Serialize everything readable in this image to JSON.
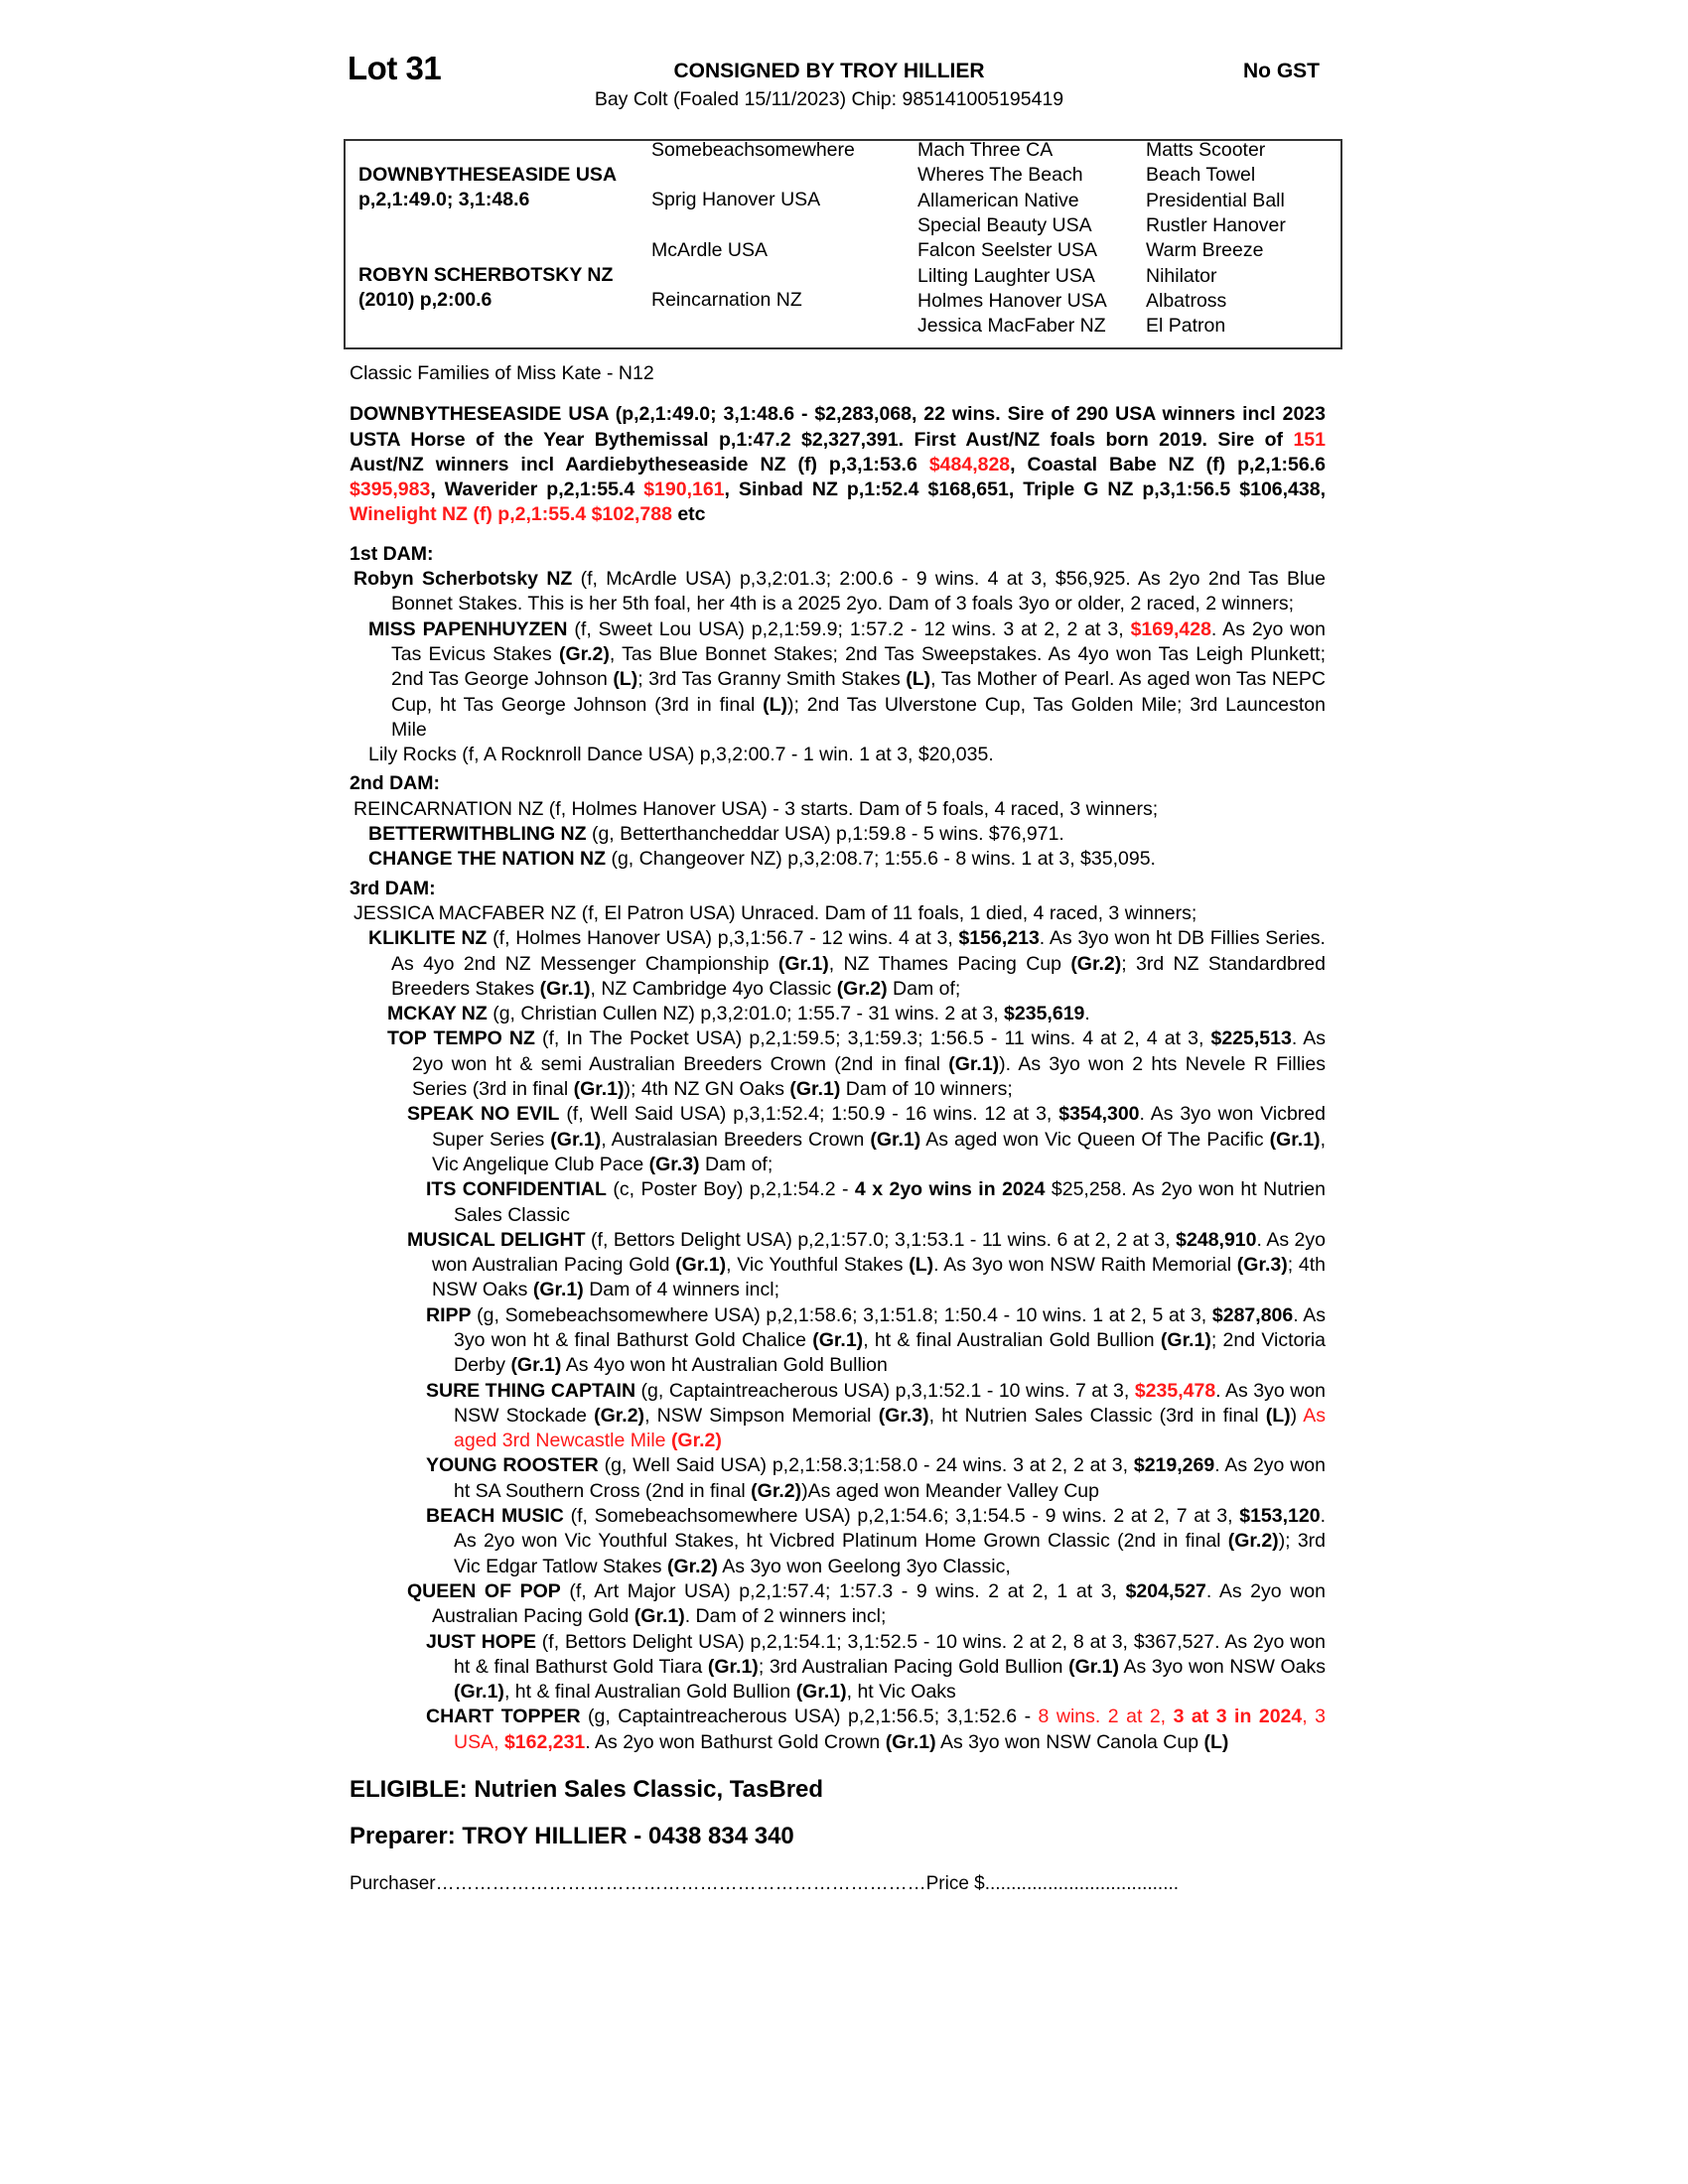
{
  "header": {
    "lot": "Lot 31",
    "consigned": "CONSIGNED BY TROY HILLIER",
    "gst": "No GST",
    "horse": "Bay Colt (Foaled 15/11/2023) Chip: 985141005195419"
  },
  "pedigree": {
    "sire_name": "DOWNBYTHESEASIDE USA",
    "sire_record": "p,2,1:49.0; 3,1:48.6",
    "dam_name": "ROBYN SCHERBOTSKY NZ",
    "dam_record": "(2010) p,2:00.6",
    "gen2": [
      "Somebeachsomewhere",
      "Sprig Hanover USA",
      "McArdle USA",
      "Reincarnation NZ"
    ],
    "gen3": [
      "Mach Three CA",
      "Wheres The Beach",
      "Allamerican Native",
      "Special Beauty USA",
      "Falcon Seelster USA",
      "Lilting Laughter USA",
      "Holmes Hanover USA",
      "Jessica MacFaber NZ"
    ],
    "gen4": [
      "Matts Scooter",
      "Beach Towel",
      "Presidential Ball",
      "Rustler Hanover",
      "Warm Breeze",
      "Nihilator",
      "Albatross",
      "El Patron"
    ]
  },
  "colors": {
    "highlight": "#ff1a1a",
    "text": "#000000"
  },
  "family": "Classic Families of Miss Kate - N12",
  "sire_para": [
    [
      "DOWNBYTHESEASIDE USA (p,2,1:49.0; 3,1:48.6 - $2,283,068, 22 wins. Sire of 290 USA winners incl 2023 USTA Horse of the Year Bythemissal p,1:47.2 $2,327,391. First Aust/NZ foals born 2019. Sire of ",
      "b"
    ],
    [
      "151",
      "br"
    ],
    [
      " Aust/NZ winners incl Aardiebytheseaside NZ (f) p,3,1:53.6 ",
      "b"
    ],
    [
      "$484,828",
      "br"
    ],
    [
      ", Coastal Babe NZ (f) p,2,1:56.6 ",
      "b"
    ],
    [
      "$395,983",
      "br"
    ],
    [
      ", Waverider p,2,1:55.4 ",
      "b"
    ],
    [
      "$190,161",
      "br"
    ],
    [
      ", Sinbad NZ p,1:52.4 $168,651, Triple G NZ p,3,1:56.5 $106,438, ",
      "b"
    ],
    [
      "Winelight NZ (f) p,2,1:55.4 $102,788",
      "br"
    ],
    [
      " etc",
      "b"
    ]
  ],
  "dam1": {
    "heading": "1st DAM:",
    "entries": [
      [
        [
          "Robyn Scherbotsky NZ",
          "b"
        ],
        [
          " (f, McArdle USA) p,3,2:01.3; 2:00.6 - 9 wins. 4 at 3, $56,925. As 2yo 2nd Tas Blue Bonnet Stakes. This is her 5th foal, her 4th is a 2025 2yo. Dam of 3 foals 3yo or older, 2 raced, 2 winners;",
          ""
        ]
      ],
      [
        [
          "MISS PAPENHUYZEN",
          "b"
        ],
        [
          " (f, Sweet Lou USA) p,2,1:59.9; 1:57.2 - 12 wins. 3 at 2, 2 at 3, ",
          ""
        ],
        [
          "$169,428",
          "br"
        ],
        [
          ". As 2yo won Tas Evicus Stakes ",
          ""
        ],
        [
          "(Gr.2)",
          "b"
        ],
        [
          ", Tas Blue Bonnet Stakes; 2nd Tas Sweepstakes. As 4yo won Tas Leigh Plunkett; 2nd Tas George Johnson ",
          ""
        ],
        [
          "(L)",
          "b"
        ],
        [
          "; 3rd Tas Granny Smith Stakes ",
          ""
        ],
        [
          "(L)",
          "b"
        ],
        [
          ", Tas Mother of Pearl. As aged won Tas NEPC Cup, ht Tas George Johnson (3rd in final ",
          ""
        ],
        [
          "(L)",
          "b"
        ],
        [
          "); 2nd Tas Ulverstone Cup, Tas Golden Mile; 3rd Launceston Mile",
          ""
        ]
      ],
      [
        [
          "Lily Rocks (f, A Rocknroll Dance USA) p,3,2:00.7 - 1 win. 1 at 3, $20,035.",
          ""
        ]
      ]
    ]
  },
  "dam2": {
    "heading": "2nd DAM:",
    "entries": [
      [
        [
          "REINCARNATION NZ (f, Holmes Hanover USA) - 3 starts. Dam of 5 foals, 4 raced, 3 winners;",
          ""
        ]
      ],
      [
        [
          "BETTERWITHBLING NZ",
          "b"
        ],
        [
          " (g, Betterthancheddar USA) p,1:59.8 - 5 wins. $76,971.",
          ""
        ]
      ],
      [
        [
          "CHANGE THE NATION NZ",
          "b"
        ],
        [
          " (g, Changeover NZ) p,3,2:08.7; 1:55.6 - 8 wins. 1 at 3, $35,095.",
          ""
        ]
      ]
    ]
  },
  "dam3": {
    "heading": "3rd DAM:",
    "entries": [
      [
        [
          "JESSICA MACFABER NZ (f, El Patron USA) Unraced. Dam of 11 foals, 1 died, 4 raced, 3 winners;",
          ""
        ]
      ],
      [
        [
          "KLIKLITE NZ",
          "b"
        ],
        [
          " (f, Holmes Hanover USA) p,3,1:56.7 - 12 wins. 4 at 3, ",
          ""
        ],
        [
          "$156,213",
          "b"
        ],
        [
          ". As 3yo won ht DB Fillies Series. As 4yo 2nd NZ Messenger Championship ",
          ""
        ],
        [
          "(Gr.1)",
          "b"
        ],
        [
          ", NZ Thames Pacing Cup ",
          ""
        ],
        [
          "(Gr.2)",
          "b"
        ],
        [
          "; 3rd NZ Standardbred Breeders Stakes ",
          ""
        ],
        [
          "(Gr.1)",
          "b"
        ],
        [
          ", NZ Cambridge 4yo Classic ",
          ""
        ],
        [
          "(Gr.2)",
          "b"
        ],
        [
          " Dam of;",
          ""
        ]
      ],
      [
        [
          "MCKAY NZ",
          "b"
        ],
        [
          " (g, Christian Cullen NZ) p,3,2:01.0; 1:55.7 - 31 wins. 2 at 3, ",
          ""
        ],
        [
          "$235,619",
          "b"
        ],
        [
          ".",
          ""
        ]
      ],
      [
        [
          "TOP TEMPO NZ",
          "b"
        ],
        [
          " (f, In The Pocket USA) p,2,1:59.5; 3,1:59.3; 1:56.5 - 11 wins. 4 at 2, 4 at 3, ",
          ""
        ],
        [
          "$225,513",
          "b"
        ],
        [
          ". As 2yo won ht & semi Australian Breeders Crown (2nd in final ",
          ""
        ],
        [
          "(Gr.1)",
          "b"
        ],
        [
          "). As 3yo won 2 hts Nevele R Fillies Series (3rd in final ",
          ""
        ],
        [
          "(Gr.1)",
          "b"
        ],
        [
          "); 4th NZ GN Oaks ",
          ""
        ],
        [
          "(Gr.1)",
          "b"
        ],
        [
          " Dam of 10 winners;",
          ""
        ]
      ],
      [
        [
          "SPEAK NO EVIL",
          "b"
        ],
        [
          " (f, Well Said USA) p,3,1:52.4; 1:50.9 - 16 wins. 12 at 3, ",
          ""
        ],
        [
          "$354,300",
          "b"
        ],
        [
          ". As 3yo won Vicbred Super Series ",
          ""
        ],
        [
          "(Gr.1)",
          "b"
        ],
        [
          ", Australasian Breeders Crown ",
          ""
        ],
        [
          "(Gr.1)",
          "b"
        ],
        [
          " As aged won Vic Queen Of The Pacific ",
          ""
        ],
        [
          "(Gr.1)",
          "b"
        ],
        [
          ", Vic Angelique Club Pace ",
          ""
        ],
        [
          "(Gr.3)",
          "b"
        ],
        [
          " Dam of;",
          ""
        ]
      ],
      [
        [
          "ITS CONFIDENTIAL",
          "b"
        ],
        [
          " (c, Poster Boy) p,2,1:54.2 - ",
          ""
        ],
        [
          "4 x 2yo wins in 2024",
          "b"
        ],
        [
          " $25,258. As 2yo won ht Nutrien Sales Classic",
          ""
        ]
      ],
      [
        [
          "MUSICAL DELIGHT",
          "b"
        ],
        [
          " (f, Bettors Delight USA) p,2,1:57.0; 3,1:53.1 - 11 wins. 6 at 2, 2 at 3, ",
          ""
        ],
        [
          "$248,910",
          "b"
        ],
        [
          ". As 2yo won Australian Pacing Gold ",
          ""
        ],
        [
          "(Gr.1)",
          "b"
        ],
        [
          ", Vic Youthful Stakes ",
          ""
        ],
        [
          "(L)",
          "b"
        ],
        [
          ". As 3yo won NSW Raith Memorial ",
          ""
        ],
        [
          "(Gr.3)",
          "b"
        ],
        [
          "; 4th NSW Oaks ",
          ""
        ],
        [
          "(Gr.1)",
          "b"
        ],
        [
          " Dam of 4 winners incl;",
          ""
        ]
      ],
      [
        [
          "RIPP",
          "b"
        ],
        [
          " (g, Somebeachsomewhere USA) p,2,1:58.6; 3,1:51.8; 1:50.4 - 10 wins. 1 at 2, 5 at 3, ",
          ""
        ],
        [
          "$287,806",
          "b"
        ],
        [
          ". As 3yo won ht & final Bathurst Gold Chalice ",
          ""
        ],
        [
          "(Gr.1)",
          "b"
        ],
        [
          ", ht & final Australian Gold Bullion ",
          ""
        ],
        [
          "(Gr.1)",
          "b"
        ],
        [
          "; 2nd Victoria Derby ",
          ""
        ],
        [
          "(Gr.1)",
          "b"
        ],
        [
          " As 4yo won ht Australian Gold Bullion",
          ""
        ]
      ],
      [
        [
          "SURE THING CAPTAIN",
          "b"
        ],
        [
          " (g, Captaintreacherous USA) p,3,1:52.1 - 10 wins. 7 at 3, ",
          ""
        ],
        [
          "$235,478",
          "br"
        ],
        [
          ". As 3yo won NSW Stockade ",
          ""
        ],
        [
          "(Gr.2)",
          "b"
        ],
        [
          ", NSW Simpson Memorial ",
          ""
        ],
        [
          "(Gr.3)",
          "b"
        ],
        [
          ", ht Nutrien Sales Classic (3rd in final ",
          ""
        ],
        [
          "(L)",
          "b"
        ],
        [
          ") ",
          ""
        ],
        [
          "As aged 3rd Newcastle Mile ",
          "r"
        ],
        [
          "(Gr.2)",
          "br"
        ]
      ],
      [
        [
          "YOUNG ROOSTER",
          "b"
        ],
        [
          " (g, Well Said USA) p,2,1:58.3;1:58.0 - 24 wins. 3 at 2, 2 at 3, ",
          ""
        ],
        [
          "$219,269",
          "b"
        ],
        [
          ". As 2yo won ht SA Southern Cross (2nd in final ",
          ""
        ],
        [
          "(Gr.2)",
          "b"
        ],
        [
          ")As aged won Meander Valley Cup",
          ""
        ]
      ],
      [
        [
          "BEACH MUSIC",
          "b"
        ],
        [
          " (f, Somebeachsomewhere USA) p,2,1:54.6; 3,1:54.5 - 9 wins. 2 at 2, 7 at 3, ",
          ""
        ],
        [
          "$153,120",
          "b"
        ],
        [
          ". As 2yo won Vic Youthful Stakes, ht Vicbred Platinum Home Grown Classic (2nd in final ",
          ""
        ],
        [
          "(Gr.2)",
          "b"
        ],
        [
          "); 3rd Vic Edgar Tatlow Stakes ",
          ""
        ],
        [
          "(Gr.2)",
          "b"
        ],
        [
          " As 3yo won Geelong 3yo Classic,",
          ""
        ]
      ],
      [
        [
          "QUEEN OF POP",
          "b"
        ],
        [
          " (f, Art Major USA) p,2,1:57.4; 1:57.3 - 9 wins. 2 at 2, 1 at 3, ",
          ""
        ],
        [
          "$204,527",
          "b"
        ],
        [
          ". As 2yo won Australian Pacing Gold ",
          ""
        ],
        [
          "(Gr.1)",
          "b"
        ],
        [
          ". Dam of 2 winners incl;",
          ""
        ]
      ],
      [
        [
          "JUST HOPE",
          "b"
        ],
        [
          " (f, Bettors Delight USA) p,2,1:54.1; 3,1:52.5 - 10 wins. 2 at 2, 8 at 3, $367,527. As 2yo won ht & final Bathurst Gold Tiara ",
          ""
        ],
        [
          "(Gr.1)",
          "b"
        ],
        [
          "; 3rd Australian Pacing Gold Bullion ",
          ""
        ],
        [
          "(Gr.1)",
          "b"
        ],
        [
          " As 3yo won NSW Oaks ",
          ""
        ],
        [
          "(Gr.1)",
          "b"
        ],
        [
          ", ht & final Australian Gold Bullion ",
          ""
        ],
        [
          "(Gr.1)",
          "b"
        ],
        [
          ", ht Vic Oaks",
          ""
        ]
      ],
      [
        [
          "CHART TOPPER",
          "b"
        ],
        [
          " (g, Captaintreacherous USA) p,2,1:56.5; 3,1:52.6 - ",
          ""
        ],
        [
          "8 wins. 2 at 2, ",
          "r"
        ],
        [
          "3 at 3 in 2024",
          "br"
        ],
        [
          ", 3 USA, ",
          "r"
        ],
        [
          "$162,231",
          "br"
        ],
        [
          ". As 2yo won Bathurst Gold Crown ",
          ""
        ],
        [
          "(Gr.1)",
          "b"
        ],
        [
          " As 3yo won NSW Canola Cup ",
          ""
        ],
        [
          "(L)",
          "b"
        ]
      ]
    ]
  },
  "footer": {
    "eligible": "ELIGIBLE: Nutrien Sales Classic, TasBred",
    "preparer": "Preparer: TROY HILLIER - 0438 834 340",
    "purchaser": "Purchaser……………………………………………………………………Price $....................................."
  }
}
